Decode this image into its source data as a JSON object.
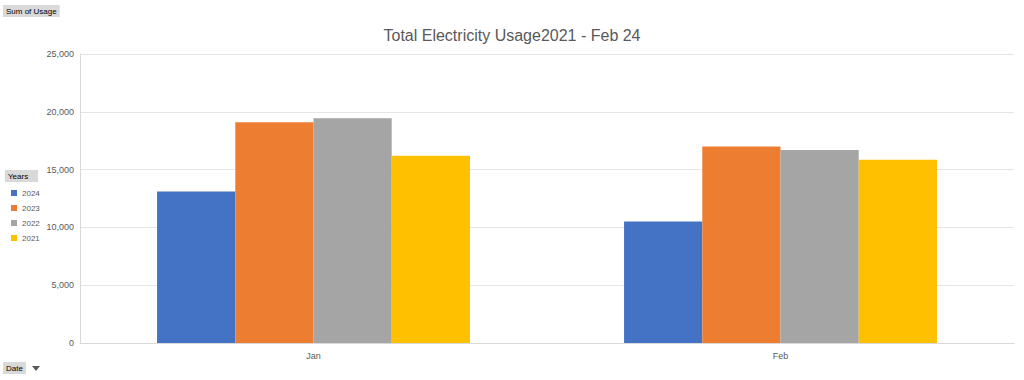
{
  "chart_data": {
    "type": "bar",
    "title": "Total Electricity Usage2021 - Feb 24",
    "categories": [
      "Jan",
      "Feb"
    ],
    "series": [
      {
        "name": "2024",
        "color": "#4472c4",
        "values": [
          13100,
          10500
        ]
      },
      {
        "name": "2023",
        "color": "#ed7d31",
        "values": [
          19100,
          17000
        ]
      },
      {
        "name": "2022",
        "color": "#a5a5a5",
        "values": [
          19450,
          16700
        ]
      },
      {
        "name": "2021",
        "color": "#ffc000",
        "values": [
          16200,
          15850
        ]
      }
    ],
    "ylim": [
      0,
      25000
    ],
    "yticks": [
      0,
      {
        "value": 5000,
        "label": "5,000"
      },
      {
        "value": 10000,
        "label": "10,000"
      },
      {
        "value": 15000,
        "label": "15,000"
      },
      {
        "value": 20000,
        "label": "20,000"
      },
      {
        "value": 25000,
        "label": "25,000"
      }
    ],
    "grid": true,
    "legend": "left",
    "legend_title": "Years",
    "annotations": [
      {
        "text": "Sum of Usage"
      },
      {
        "text": "Date"
      }
    ]
  }
}
